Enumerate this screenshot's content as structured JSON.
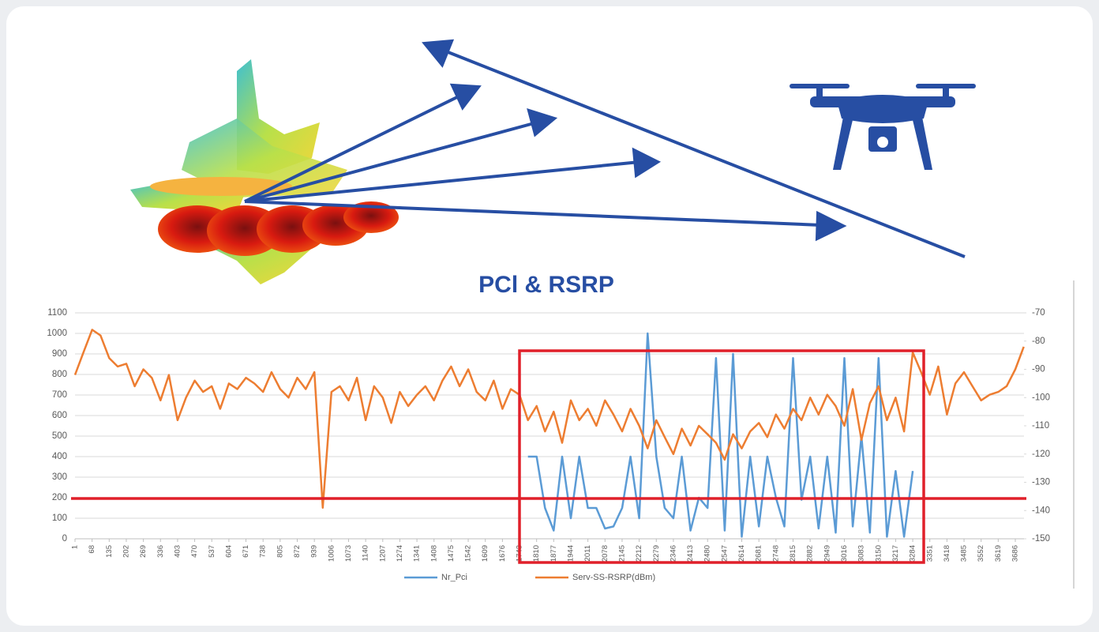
{
  "chart_data": {
    "type": "line",
    "title": "PCl & RSRP",
    "x": [
      1,
      34,
      68,
      101,
      135,
      168,
      202,
      235,
      269,
      302,
      336,
      369,
      403,
      436,
      470,
      503,
      537,
      570,
      604,
      637,
      671,
      704,
      738,
      771,
      805,
      838,
      872,
      905,
      939,
      972,
      1006,
      1039,
      1073,
      1106,
      1140,
      1173,
      1207,
      1240,
      1274,
      1307,
      1341,
      1374,
      1408,
      1441,
      1475,
      1508,
      1542,
      1575,
      1609,
      1642,
      1676,
      1709,
      1743,
      1776,
      1810,
      1843,
      1877,
      1910,
      1944,
      1977,
      2011,
      2044,
      2078,
      2111,
      2145,
      2178,
      2212,
      2245,
      2279,
      2312,
      2346,
      2379,
      2413,
      2446,
      2480,
      2513,
      2547,
      2580,
      2614,
      2647,
      2681,
      2714,
      2748,
      2781,
      2815,
      2848,
      2882,
      2915,
      2949,
      2982,
      3016,
      3049,
      3083,
      3116,
      3150,
      3183,
      3217,
      3250,
      3284,
      3317,
      3351,
      3384,
      3418,
      3451,
      3485,
      3518,
      3552,
      3585,
      3619,
      3652,
      3686,
      3719
    ],
    "xlim": [
      1,
      3720
    ],
    "xticks": [
      1,
      68,
      135,
      202,
      269,
      336,
      403,
      470,
      537,
      604,
      671,
      738,
      805,
      872,
      939,
      1006,
      1073,
      1140,
      1207,
      1274,
      1341,
      1408,
      1475,
      1542,
      1609,
      1676,
      1743,
      1810,
      1877,
      1944,
      2011,
      2078,
      2145,
      2212,
      2279,
      2346,
      2413,
      2480,
      2547,
      2614,
      2681,
      2748,
      2815,
      2882,
      2949,
      3016,
      3083,
      3150,
      3217,
      3284,
      3351,
      3418,
      3485,
      3552,
      3619,
      3686
    ],
    "ylim": [
      0,
      1100
    ],
    "yticks": [
      0,
      100,
      200,
      300,
      400,
      500,
      600,
      700,
      800,
      900,
      1000,
      1100
    ],
    "y2lim": [
      -150,
      -70
    ],
    "y2ticks": [
      -150,
      -140,
      -130,
      -120,
      -110,
      -100,
      -90,
      -80,
      -70
    ],
    "grid": true,
    "legend": "bottom",
    "series": [
      {
        "name": "Nr_Pci",
        "color": "#5b9bd5",
        "values": [
          null,
          null,
          null,
          null,
          null,
          null,
          null,
          null,
          null,
          null,
          null,
          null,
          null,
          null,
          null,
          null,
          null,
          null,
          null,
          null,
          null,
          null,
          null,
          null,
          null,
          null,
          null,
          null,
          null,
          null,
          null,
          null,
          null,
          null,
          null,
          null,
          null,
          null,
          null,
          null,
          null,
          null,
          null,
          null,
          null,
          null,
          null,
          null,
          null,
          null,
          null,
          null,
          null,
          400,
          400,
          150,
          40,
          400,
          100,
          400,
          150,
          150,
          50,
          60,
          150,
          400,
          100,
          1000,
          400,
          150,
          100,
          400,
          40,
          200,
          150,
          880,
          40,
          900,
          10,
          400,
          60,
          400,
          200,
          60,
          880,
          190,
          400,
          50,
          400,
          30,
          880,
          60,
          500,
          30,
          880,
          10,
          330,
          10,
          330,
          null,
          null,
          null,
          null,
          null,
          null,
          null,
          null,
          null,
          null,
          null,
          null,
          null
        ]
      },
      {
        "name": "Serv-SS-RSRP(dBm)",
        "color": "#ed7d31",
        "axis": "y2",
        "values": [
          -92,
          -84,
          -76,
          -78,
          -86,
          -89,
          -88,
          -96,
          -90,
          -93,
          -101,
          -92,
          -108,
          -100,
          -94,
          -98,
          -96,
          -104,
          -95,
          -97,
          -93,
          -95,
          -98,
          -91,
          -97,
          -100,
          -93,
          -97,
          -91,
          -139,
          -98,
          -96,
          -101,
          -93,
          -108,
          -96,
          -100,
          -109,
          -98,
          -103,
          -99,
          -96,
          -101,
          -94,
          -89,
          -96,
          -90,
          -98,
          -101,
          -94,
          -104,
          -97,
          -99,
          -108,
          -103,
          -112,
          -105,
          -116,
          -101,
          -108,
          -104,
          -110,
          -101,
          -106,
          -112,
          -104,
          -110,
          -118,
          -108,
          -114,
          -120,
          -111,
          -117,
          -110,
          -113,
          -116,
          -122,
          -113,
          -118,
          -112,
          -109,
          -114,
          -106,
          -111,
          -104,
          -108,
          -100,
          -106,
          -99,
          -103,
          -110,
          -97,
          -115,
          -102,
          -96,
          -108,
          -100,
          -112,
          -84,
          -91,
          -99,
          -89,
          -106,
          -95,
          -91,
          -96,
          -101,
          -99,
          -98,
          -96,
          -90,
          -82
        ]
      }
    ]
  }
}
